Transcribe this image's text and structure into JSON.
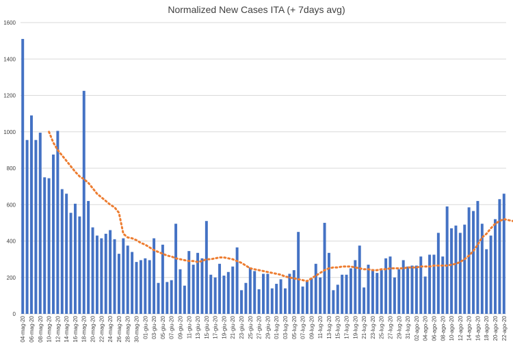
{
  "chart_data": {
    "type": "bar",
    "title": "Normalized New Cases ITA (+ 7days avg)",
    "ylim": [
      0,
      1600
    ],
    "yticks": [
      0,
      200,
      400,
      600,
      800,
      1000,
      1200,
      1400,
      1600
    ],
    "grid": true,
    "legend": "none",
    "colors": {
      "bars": "#4472c4",
      "avg": "#ed7d31"
    },
    "x_tick_labels": [
      "04-mag-20",
      "06-mag-20",
      "08-mag-20",
      "10-mag-20",
      "12-mag-20",
      "14-mag-20",
      "16-mag-20",
      "18-mag-20",
      "20-mag-20",
      "22-mag-20",
      "24-mag-20",
      "26-mag-20",
      "28-mag-20",
      "30-mag-20",
      "01-giu-20",
      "03-giu-20",
      "05-giu-20",
      "07-giu-20",
      "09-giu-20",
      "11-giu-20",
      "13-giu-20",
      "15-giu-20",
      "17-giu-20",
      "19-giu-20",
      "21-giu-20",
      "23-giu-20",
      "25-giu-20",
      "27-giu-20",
      "29-giu-20",
      "01-lug-20",
      "03-lug-20",
      "05-lug-20",
      "07-lug-20",
      "09-lug-20",
      "11-lug-20",
      "13-lug-20",
      "15-lug-20",
      "17-lug-20",
      "19-lug-20",
      "21-lug-20",
      "23-lug-20",
      "25-lug-20",
      "27-lug-20",
      "29-lug-20",
      "31-lug-20",
      "02-ago-20",
      "04-ago-20",
      "06-ago-20",
      "08-ago-20",
      "10-ago-20",
      "12-ago-20",
      "14-ago-20",
      "16-ago-20",
      "18-ago-20",
      "20-ago-20",
      "22-ago-20"
    ],
    "series": [
      {
        "kind": "bar",
        "values": [
          1510,
          955,
          1090,
          955,
          995,
          750,
          745,
          875,
          1005,
          685,
          660,
          555,
          605,
          535,
          1225,
          620,
          475,
          430,
          415,
          440,
          460,
          410,
          330,
          415,
          375,
          340,
          285,
          295,
          305,
          295,
          415,
          170,
          380,
          175,
          185,
          495,
          245,
          155,
          345,
          270,
          335,
          305,
          510,
          215,
          200,
          275,
          210,
          230,
          260,
          365,
          130,
          170,
          255,
          235,
          135,
          220,
          220,
          140,
          165,
          190,
          140,
          220,
          240,
          450,
          150,
          180,
          195,
          275,
          200,
          500,
          335,
          130,
          160,
          215,
          215,
          250,
          295,
          375,
          145,
          270,
          245,
          225,
          240,
          305,
          315,
          200,
          245,
          295,
          260,
          265,
          265,
          315,
          205,
          325,
          325,
          445,
          315,
          590,
          470,
          485,
          445,
          490,
          585,
          565,
          620,
          495,
          355,
          430,
          520,
          630,
          660
        ]
      },
      {
        "kind": "line",
        "start_index": 6,
        "values": [
          1000,
          940,
          900,
          870,
          840,
          810,
          780,
          755,
          740,
          720,
          690,
          660,
          640,
          620,
          600,
          585,
          555,
          440,
          420,
          415,
          405,
          390,
          380,
          365,
          350,
          340,
          330,
          320,
          315,
          305,
          300,
          295,
          290,
          290,
          285,
          290,
          300,
          300,
          305,
          310,
          310,
          305,
          300,
          290,
          280,
          265,
          250,
          245,
          240,
          235,
          230,
          225,
          220,
          215,
          205,
          200,
          195,
          190,
          185,
          180,
          195,
          210,
          225,
          240,
          250,
          255,
          255,
          260,
          260,
          260,
          255,
          250,
          245,
          245,
          240,
          240,
          245,
          245,
          250,
          250,
          250,
          250,
          255,
          255,
          255,
          260,
          260,
          260,
          265,
          265,
          265,
          265,
          270,
          275,
          285,
          300,
          320,
          345,
          380,
          420,
          440,
          470,
          495,
          510,
          520,
          515,
          510,
          515,
          520,
          525
        ]
      }
    ]
  }
}
